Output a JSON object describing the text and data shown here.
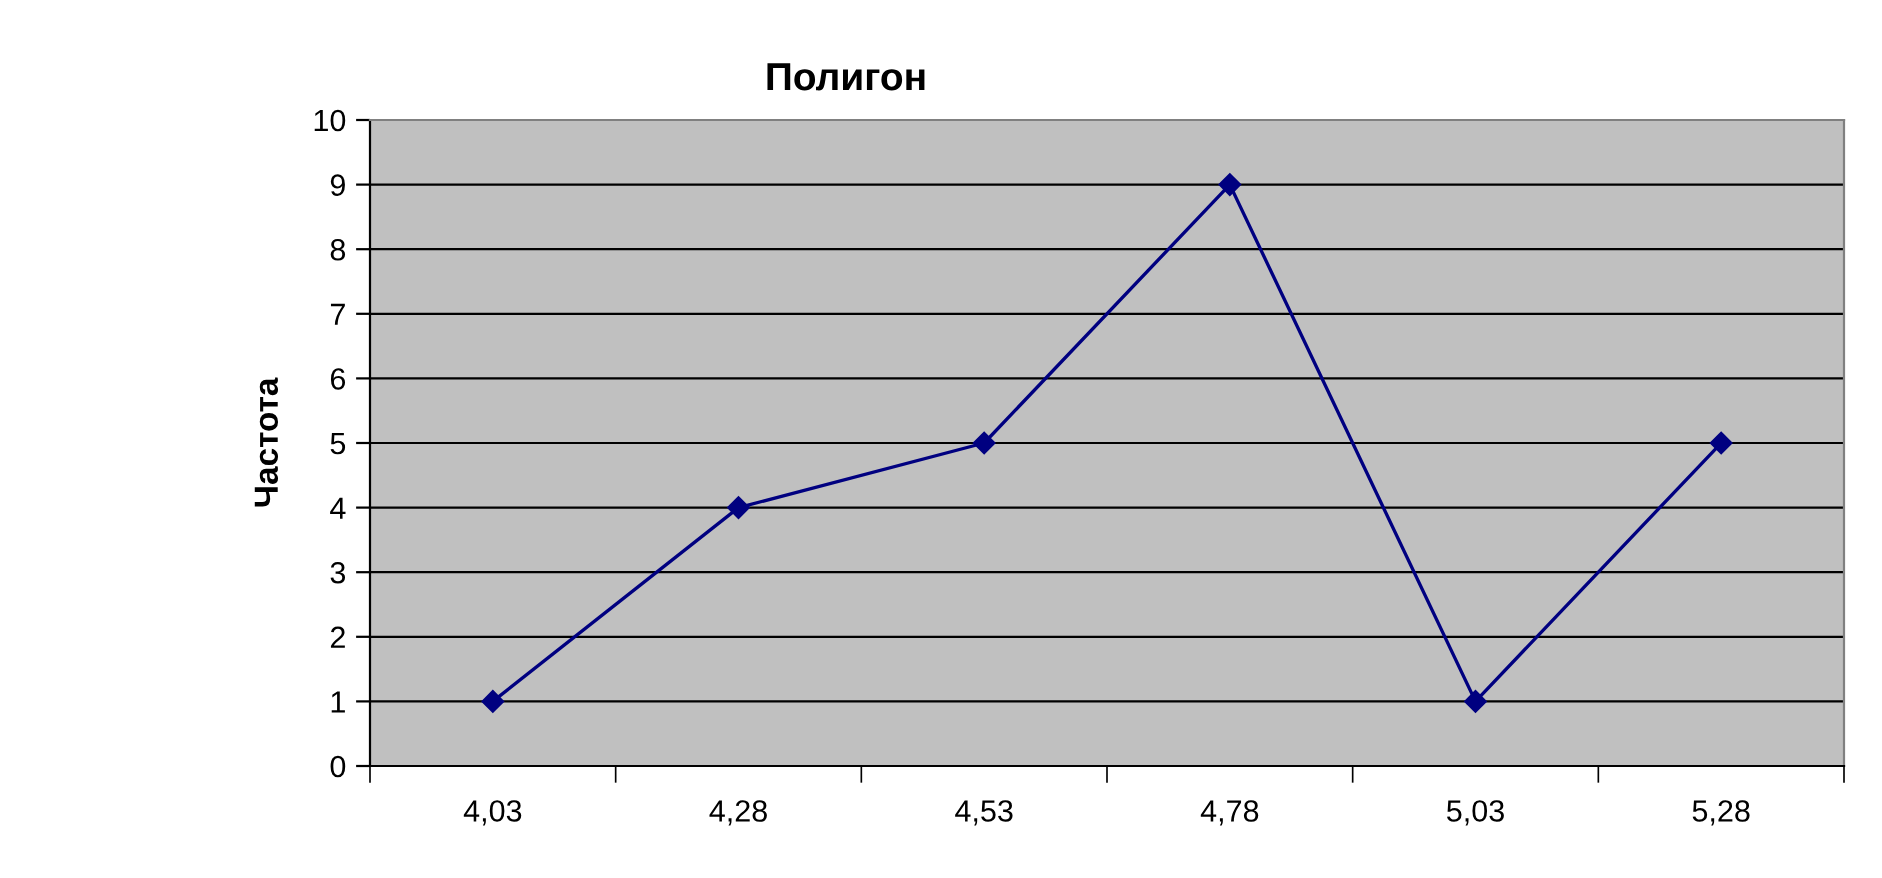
{
  "chart_data": {
    "type": "line",
    "title": "Полигон",
    "ylabel": "Частота",
    "categories": [
      "4,03",
      "4,28",
      "4,53",
      "4,78",
      "5,03",
      "5,28"
    ],
    "series": [
      {
        "color": "#000080",
        "values": [
          1,
          4,
          5,
          9,
          1,
          5
        ]
      }
    ],
    "ylim": [
      0,
      10
    ],
    "yticks": [
      0,
      1,
      2,
      3,
      4,
      5,
      6,
      7,
      8,
      9,
      10
    ],
    "grid": "y",
    "marker": "diamond",
    "line_style": "solid"
  }
}
